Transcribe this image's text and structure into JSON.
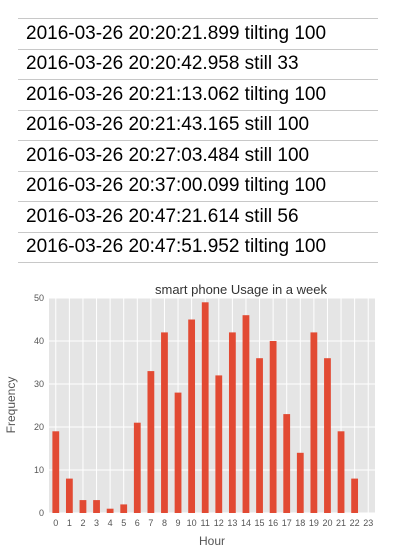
{
  "log": {
    "rows": [
      "2016-03-26 20:20:21.899 tilting 100",
      "2016-03-26 20:20:42.958 still 33",
      "2016-03-26 20:21:13.062 tilting 100",
      "2016-03-26 20:21:43.165 still 100",
      "2016-03-26 20:27:03.484 still 100",
      "2016-03-26 20:37:00.099 tilting 100",
      "2016-03-26 20:47:21.614 still 56",
      "2016-03-26 20:47:51.952 tilting 100"
    ]
  },
  "chart_data": {
    "type": "bar",
    "title": "smart phone Usage in a week",
    "xlabel": "Hour",
    "ylabel": "Frequency",
    "categories": [
      "0",
      "1",
      "2",
      "3",
      "4",
      "5",
      "6",
      "7",
      "8",
      "9",
      "10",
      "11",
      "12",
      "13",
      "14",
      "15",
      "16",
      "17",
      "18",
      "19",
      "20",
      "21",
      "22",
      "23"
    ],
    "values": [
      19,
      8,
      3,
      3,
      1,
      2,
      21,
      33,
      42,
      28,
      45,
      49,
      32,
      42,
      46,
      36,
      40,
      23,
      14,
      42,
      36,
      19,
      8,
      0
    ],
    "ylim": [
      0,
      50
    ],
    "yticks": [
      0,
      10,
      20,
      30,
      40,
      50
    ],
    "grid": true,
    "colors": {
      "bar": "#e24a33",
      "background": "#e5e5e5",
      "grid": "#ffffff",
      "text": "#555555"
    }
  }
}
